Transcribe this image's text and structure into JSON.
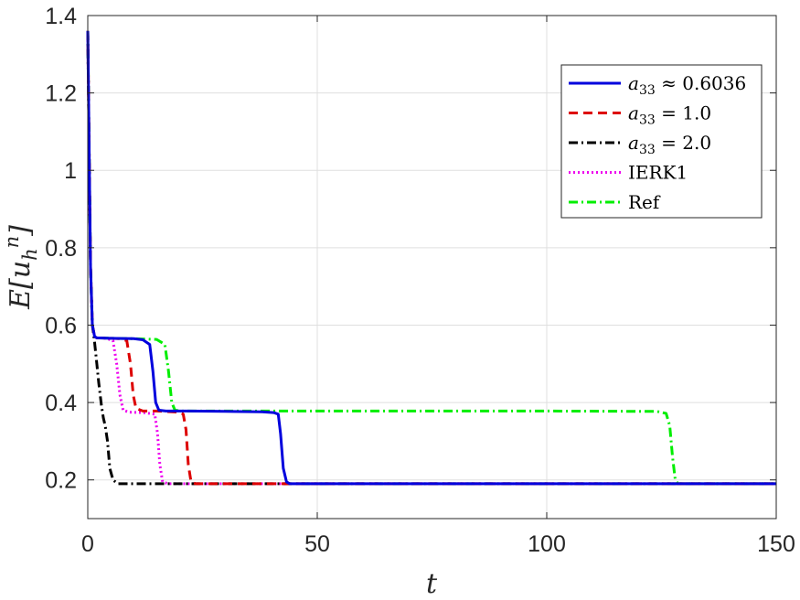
{
  "chart_data": {
    "type": "line",
    "title": "",
    "xlabel": "t",
    "ylabel_main": "E[u",
    "ylabel_sub": "h",
    "ylabel_sup": "n",
    "ylabel_close": "]",
    "xlim": [
      0,
      150
    ],
    "ylim": [
      0.1,
      1.4
    ],
    "xticks": [
      0,
      50,
      100,
      150
    ],
    "xtick_labels": [
      "0",
      "50",
      "100",
      "150"
    ],
    "yticks": [
      0.2,
      0.4,
      0.6,
      0.8,
      1.0,
      1.2,
      1.4
    ],
    "ytick_labels": [
      "0.2",
      "0.4",
      "0.6",
      "0.8",
      "1",
      "1.2",
      "1.4"
    ],
    "grid": true,
    "legend_position": "top-right",
    "series": [
      {
        "name": "a33 ≈ 0.6036",
        "legend_var": "a",
        "legend_sub": "33",
        "legend_rel": "≈ 0.6036",
        "color": "#0000dd",
        "dash": "solid",
        "x": [
          0,
          0.3,
          0.6,
          1.0,
          1.5,
          2,
          5,
          10,
          12,
          13.5,
          14.2,
          14.8,
          15.5,
          17,
          22,
          30,
          38,
          40.5,
          41.5,
          42.0,
          42.6,
          43.3,
          44,
          50,
          100,
          150
        ],
        "y": [
          1.36,
          1.05,
          0.75,
          0.6,
          0.57,
          0.567,
          0.566,
          0.565,
          0.562,
          0.55,
          0.48,
          0.4,
          0.38,
          0.378,
          0.378,
          0.377,
          0.376,
          0.374,
          0.37,
          0.32,
          0.23,
          0.195,
          0.19,
          0.19,
          0.19,
          0.19
        ]
      },
      {
        "name": "a33 = 1.0",
        "legend_var": "a",
        "legend_sub": "33",
        "legend_rel": "= 1.0",
        "color": "#dd0000",
        "dash": "dashed",
        "x": [
          0,
          0.3,
          0.6,
          1.0,
          1.5,
          2,
          5,
          7,
          8.5,
          9.3,
          9.9,
          10.5,
          12,
          15,
          20,
          20.8,
          21.4,
          21.9,
          22.5,
          23.5,
          30,
          150
        ],
        "y": [
          1.36,
          1.05,
          0.75,
          0.6,
          0.57,
          0.567,
          0.566,
          0.565,
          0.56,
          0.5,
          0.42,
          0.385,
          0.378,
          0.378,
          0.375,
          0.37,
          0.33,
          0.24,
          0.195,
          0.19,
          0.19,
          0.19
        ]
      },
      {
        "name": "a33 = 2.0",
        "legend_var": "a",
        "legend_sub": "33",
        "legend_rel": "= 2.0",
        "color": "#000000",
        "dash": "dashdot",
        "x": [
          0,
          0.3,
          0.6,
          1.0,
          1.4,
          1.8,
          2.4,
          3.0,
          3.4,
          3.8,
          4.3,
          4.8,
          5.5,
          6.5,
          8,
          150
        ],
        "y": [
          1.36,
          1.05,
          0.75,
          0.6,
          0.565,
          0.52,
          0.45,
          0.39,
          0.36,
          0.34,
          0.3,
          0.23,
          0.2,
          0.19,
          0.19,
          0.19
        ]
      },
      {
        "name": "IERK1",
        "legend_var": "",
        "legend_sub": "",
        "legend_rel": "IERK1",
        "color": "#ee00ee",
        "dash": "dotted",
        "x": [
          0,
          0.3,
          0.6,
          1.0,
          1.5,
          2,
          4,
          5.5,
          6.3,
          7.0,
          7.7,
          9,
          12,
          14.6,
          15.2,
          15.7,
          16.3,
          17.5,
          30,
          150
        ],
        "y": [
          1.36,
          1.05,
          0.75,
          0.6,
          0.57,
          0.567,
          0.566,
          0.56,
          0.5,
          0.42,
          0.38,
          0.375,
          0.374,
          0.37,
          0.32,
          0.24,
          0.195,
          0.19,
          0.19,
          0.19
        ]
      },
      {
        "name": "Ref",
        "legend_var": "",
        "legend_sub": "",
        "legend_rel": "Ref",
        "color": "#00ee00",
        "dash": "dashdot",
        "x": [
          0,
          0.3,
          0.6,
          1.0,
          1.5,
          2,
          5,
          10,
          15,
          16.8,
          17.6,
          18.3,
          19,
          20.5,
          30,
          60,
          100,
          124,
          126,
          126.8,
          127.4,
          128.0,
          128.6,
          130,
          150
        ],
        "y": [
          1.36,
          1.05,
          0.75,
          0.6,
          0.57,
          0.567,
          0.566,
          0.565,
          0.563,
          0.55,
          0.48,
          0.4,
          0.38,
          0.378,
          0.378,
          0.378,
          0.378,
          0.377,
          0.372,
          0.34,
          0.26,
          0.2,
          0.19,
          0.19,
          0.19
        ]
      }
    ]
  }
}
